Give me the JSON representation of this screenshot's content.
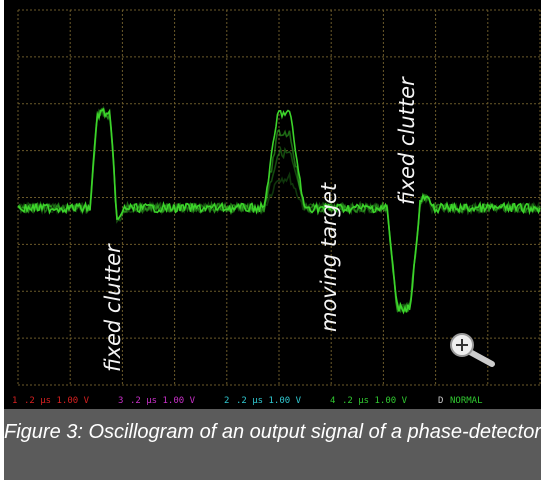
{
  "image": {
    "annotations": [
      "fixed clutter",
      "moving target",
      "fixed clutter"
    ],
    "status_bar": [
      {
        "channel": "1",
        "setting": ".2 µs 1.00 V"
      },
      {
        "channel": "3",
        "setting": ".2 µs 1.00 V"
      },
      {
        "channel": "2",
        "setting": ".2 µs 1.00 V"
      },
      {
        "channel": "4",
        "setting": ".2 µs 1.00 V"
      },
      {
        "channel": "D",
        "setting": "NORMAL"
      }
    ]
  },
  "caption": "Figure 3: Oscillogram of an output signal of a phase-detector"
}
